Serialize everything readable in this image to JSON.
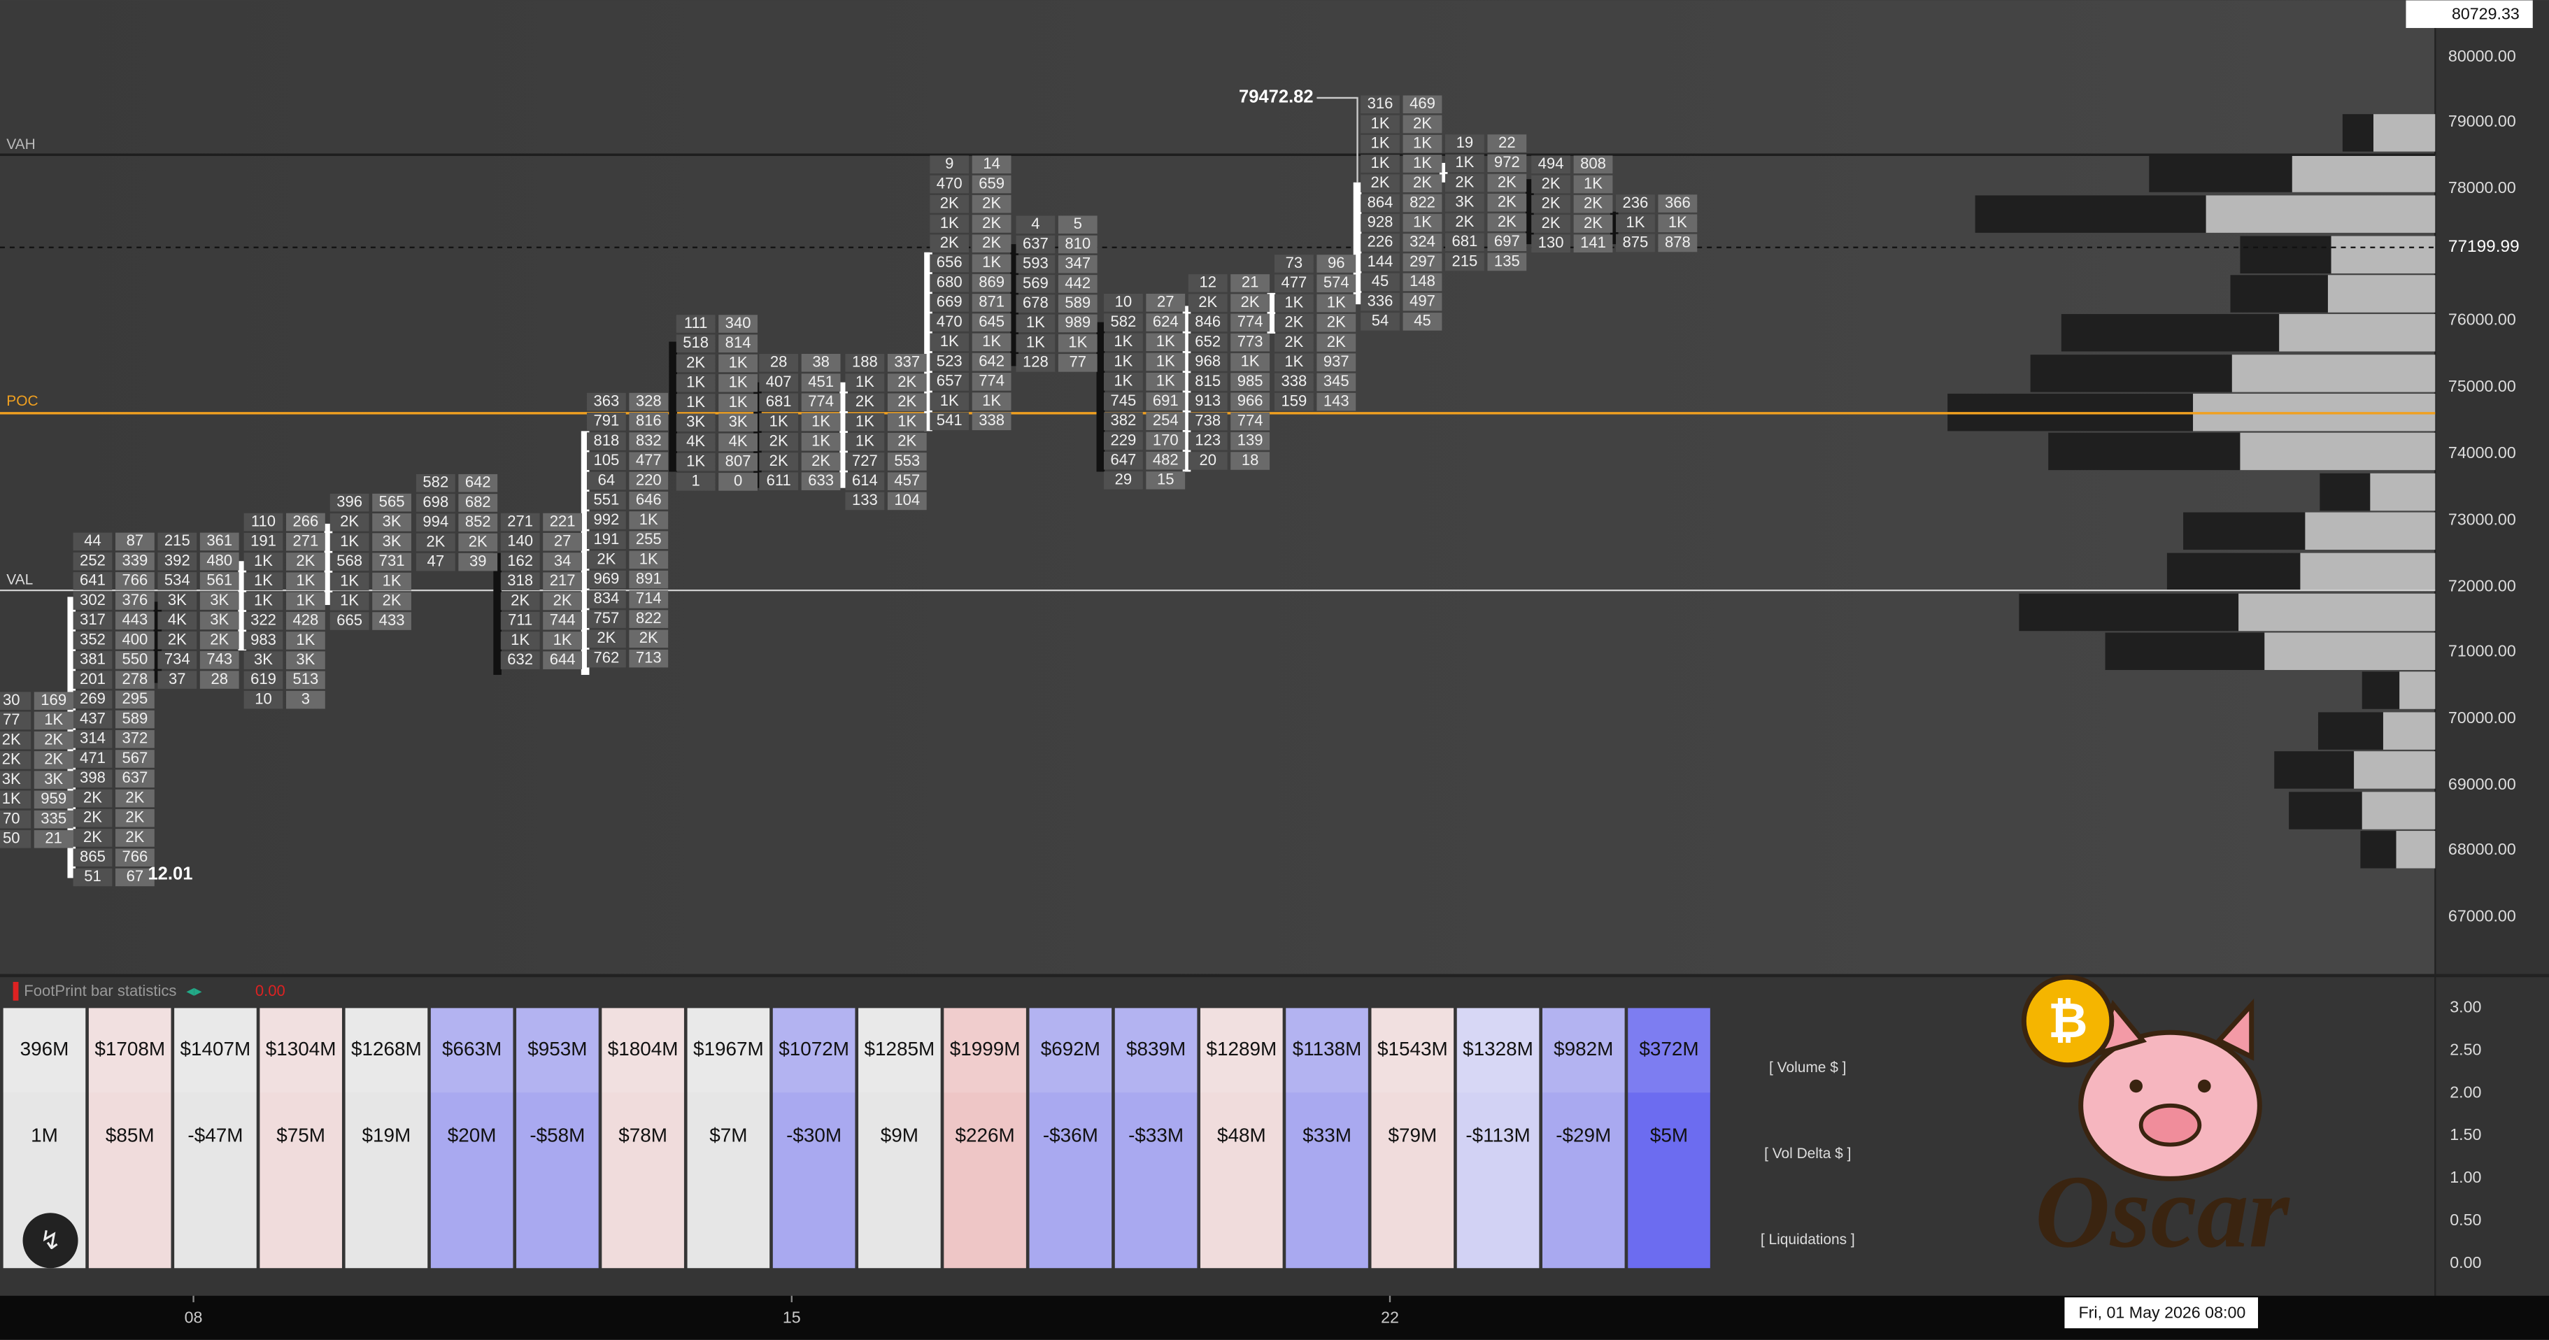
{
  "header": {
    "price_marker": "79472.82",
    "price_high": "80729.33",
    "price_current": "77199.99",
    "low_label": "12.01"
  },
  "levels": {
    "vah": "VAH",
    "poc": "POC",
    "val": "VAL"
  },
  "price_axis": [
    "80000.00",
    "79000.00",
    "78000.00",
    "76000.00",
    "75000.00",
    "74000.00",
    "73000.00",
    "72000.00",
    "71000.00",
    "70000.00",
    "69000.00",
    "68000.00",
    "67000.00"
  ],
  "footprint": [
    [
      [
        "30",
        "169"
      ],
      [
        "77",
        "1K"
      ],
      [
        "2K",
        "2K"
      ],
      [
        "2K",
        "2K"
      ],
      [
        "3K",
        "3K"
      ],
      [
        "1K",
        "959"
      ],
      [
        "70",
        "335"
      ],
      [
        "50",
        "21"
      ]
    ],
    [
      [
        "44",
        "87"
      ],
      [
        "252",
        "339"
      ],
      [
        "641",
        "766"
      ],
      [
        "302",
        "376"
      ],
      [
        "317",
        "443"
      ],
      [
        "352",
        "400"
      ],
      [
        "381",
        "550"
      ],
      [
        "201",
        "278"
      ],
      [
        "269",
        "295"
      ],
      [
        "437",
        "589"
      ],
      [
        "314",
        "372"
      ],
      [
        "471",
        "567"
      ],
      [
        "398",
        "637"
      ],
      [
        "2K",
        "2K"
      ],
      [
        "2K",
        "2K"
      ],
      [
        "2K",
        "2K"
      ],
      [
        "865",
        "766"
      ],
      [
        "51",
        "67"
      ]
    ],
    [
      [
        "215",
        "361"
      ],
      [
        "392",
        "480"
      ],
      [
        "534",
        "561"
      ],
      [
        "3K",
        "3K"
      ],
      [
        "4K",
        "3K"
      ],
      [
        "2K",
        "2K"
      ],
      [
        "734",
        "743"
      ],
      [
        "37",
        "28"
      ]
    ],
    [
      [
        "110",
        "266"
      ],
      [
        "191",
        "271"
      ],
      [
        "1K",
        "2K"
      ],
      [
        "1K",
        "1K"
      ],
      [
        "1K",
        "1K"
      ],
      [
        "322",
        "428"
      ],
      [
        "983",
        "1K"
      ],
      [
        "3K",
        "3K"
      ],
      [
        "619",
        "513"
      ],
      [
        "10",
        "3"
      ]
    ],
    [
      [
        "396",
        "565"
      ],
      [
        "2K",
        "3K"
      ],
      [
        "1K",
        "3K"
      ],
      [
        "568",
        "731"
      ],
      [
        "1K",
        "1K"
      ],
      [
        "1K",
        "2K"
      ],
      [
        "665",
        "433"
      ]
    ],
    [
      [
        "582",
        "642"
      ],
      [
        "698",
        "682"
      ],
      [
        "994",
        "852"
      ],
      [
        "2K",
        "2K"
      ],
      [
        "47",
        "39"
      ]
    ],
    [
      [
        "271",
        "221"
      ],
      [
        "140",
        "27"
      ],
      [
        "162",
        "34"
      ],
      [
        "318",
        "217"
      ],
      [
        "2K",
        "2K"
      ],
      [
        "711",
        "744"
      ],
      [
        "1K",
        "1K"
      ],
      [
        "632",
        "644"
      ]
    ],
    [
      [
        "363",
        "328"
      ],
      [
        "791",
        "816"
      ],
      [
        "818",
        "832"
      ],
      [
        "105",
        "477"
      ],
      [
        "64",
        "220"
      ],
      [
        "551",
        "646"
      ],
      [
        "992",
        "1K"
      ],
      [
        "191",
        "255"
      ],
      [
        "2K",
        "1K"
      ],
      [
        "969",
        "891"
      ],
      [
        "834",
        "714"
      ],
      [
        "757",
        "822"
      ],
      [
        "2K",
        "2K"
      ],
      [
        "762",
        "713"
      ]
    ],
    [
      [
        "111",
        "340"
      ],
      [
        "518",
        "814"
      ],
      [
        "2K",
        "1K"
      ],
      [
        "1K",
        "1K"
      ],
      [
        "1K",
        "1K"
      ],
      [
        "3K",
        "3K"
      ],
      [
        "4K",
        "4K"
      ],
      [
        "1K",
        "807"
      ],
      [
        "1",
        "0"
      ]
    ],
    [
      [
        "28",
        "38"
      ],
      [
        "407",
        "451"
      ],
      [
        "681",
        "774"
      ],
      [
        "1K",
        "1K"
      ],
      [
        "2K",
        "1K"
      ],
      [
        "2K",
        "2K"
      ],
      [
        "611",
        "633"
      ]
    ],
    [
      [
        "188",
        "337"
      ],
      [
        "1K",
        "2K"
      ],
      [
        "2K",
        "2K"
      ],
      [
        "1K",
        "1K"
      ],
      [
        "1K",
        "2K"
      ],
      [
        "727",
        "553"
      ],
      [
        "614",
        "457"
      ],
      [
        "133",
        "104"
      ]
    ],
    [
      [
        "9",
        "14"
      ],
      [
        "470",
        "659"
      ],
      [
        "2K",
        "2K"
      ],
      [
        "1K",
        "2K"
      ],
      [
        "2K",
        "2K"
      ],
      [
        "656",
        "1K"
      ],
      [
        "680",
        "869"
      ],
      [
        "669",
        "871"
      ],
      [
        "470",
        "645"
      ],
      [
        "1K",
        "1K"
      ],
      [
        "523",
        "642"
      ],
      [
        "657",
        "774"
      ],
      [
        "1K",
        "1K"
      ],
      [
        "541",
        "338"
      ]
    ],
    [
      [
        "4",
        "5"
      ],
      [
        "637",
        "810"
      ],
      [
        "593",
        "347"
      ],
      [
        "569",
        "442"
      ],
      [
        "678",
        "589"
      ],
      [
        "1K",
        "989"
      ],
      [
        "1K",
        "1K"
      ],
      [
        "128",
        "77"
      ]
    ],
    [
      [
        "10",
        "27"
      ],
      [
        "582",
        "624"
      ],
      [
        "1K",
        "1K"
      ],
      [
        "1K",
        "1K"
      ],
      [
        "1K",
        "1K"
      ],
      [
        "745",
        "691"
      ],
      [
        "382",
        "254"
      ],
      [
        "229",
        "170"
      ],
      [
        "647",
        "482"
      ],
      [
        "29",
        "15"
      ]
    ],
    [
      [
        "12",
        "21"
      ],
      [
        "2K",
        "2K"
      ],
      [
        "846",
        "774"
      ],
      [
        "652",
        "773"
      ],
      [
        "968",
        "1K"
      ],
      [
        "815",
        "985"
      ],
      [
        "913",
        "966"
      ],
      [
        "738",
        "774"
      ],
      [
        "123",
        "139"
      ],
      [
        "20",
        "18"
      ]
    ],
    [
      [
        "73",
        "96"
      ],
      [
        "477",
        "574"
      ],
      [
        "1K",
        "1K"
      ],
      [
        "2K",
        "2K"
      ],
      [
        "2K",
        "2K"
      ],
      [
        "1K",
        "937"
      ],
      [
        "338",
        "345"
      ],
      [
        "159",
        "143"
      ]
    ],
    [
      [
        "316",
        "469"
      ],
      [
        "1K",
        "2K"
      ],
      [
        "1K",
        "1K"
      ],
      [
        "1K",
        "1K"
      ],
      [
        "2K",
        "2K"
      ],
      [
        "864",
        "822"
      ],
      [
        "928",
        "1K"
      ],
      [
        "226",
        "324"
      ],
      [
        "144",
        "297"
      ],
      [
        "45",
        "148"
      ],
      [
        "336",
        "497"
      ],
      [
        "54",
        "45"
      ]
    ],
    [
      [
        "19",
        "22"
      ],
      [
        "1K",
        "972"
      ],
      [
        "2K",
        "2K"
      ],
      [
        "3K",
        "2K"
      ],
      [
        "2K",
        "2K"
      ],
      [
        "681",
        "697"
      ],
      [
        "215",
        "135"
      ]
    ],
    [
      [
        "494",
        "808"
      ],
      [
        "2K",
        "1K"
      ],
      [
        "2K",
        "2K"
      ],
      [
        "2K",
        "2K"
      ],
      [
        "130",
        "141"
      ]
    ],
    [
      [
        "236",
        "366"
      ],
      [
        "1K",
        "1K"
      ],
      [
        "875",
        "878"
      ]
    ]
  ],
  "statistics": {
    "title": "FootPrint bar statistics",
    "value": "0.00",
    "volume": [
      "396M",
      "$1708M",
      "$1407M",
      "$1304M",
      "$1268M",
      "$663M",
      "$953M",
      "$1804M",
      "$1967M",
      "$1072M",
      "$1285M",
      "$1999M",
      "$692M",
      "$839M",
      "$1289M",
      "$1138M",
      "$1543M",
      "$1328M",
      "$982M",
      "$372M"
    ],
    "vol_delta": [
      "1M",
      "$85M",
      "-$47M",
      "$75M",
      "$19M",
      "$20M",
      "-$58M",
      "$78M",
      "$7M",
      "-$30M",
      "$9M",
      "$226M",
      "-$36M",
      "-$33M",
      "$48M",
      "$33M",
      "$79M",
      "-$113M",
      "-$29M",
      "$5M"
    ],
    "row_labels": [
      "[ Volume $ ]",
      "[ Vol Delta $ ]",
      "[ Liquidations ]"
    ],
    "axis": [
      "3.00",
      "2.50",
      "2.00",
      "1.50",
      "1.00",
      "0.50",
      "0.00"
    ]
  },
  "time_axis": [
    "08",
    "15",
    "22"
  ],
  "date_label": "Fri, 01 May 2026 08:00",
  "logo": {
    "coin": "₿",
    "text": "Oscar"
  }
}
